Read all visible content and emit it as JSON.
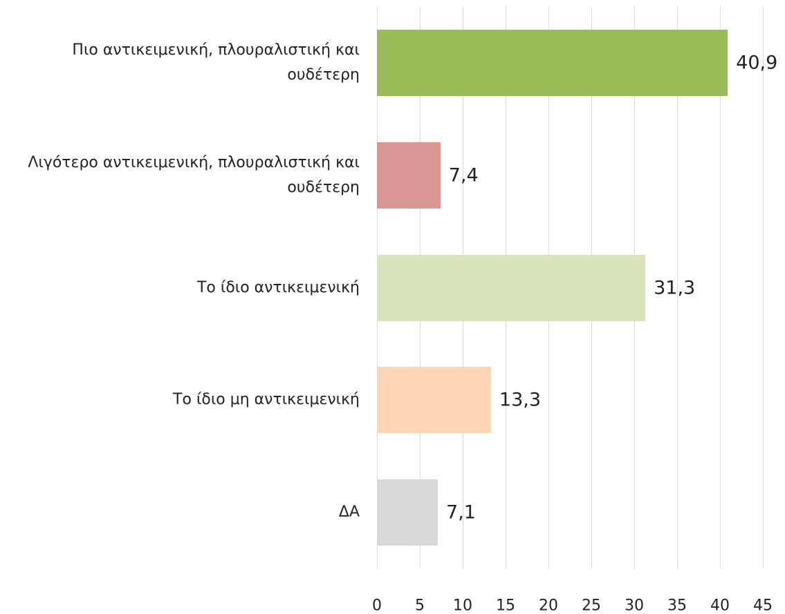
{
  "chart_data": {
    "type": "barh",
    "categories": [
      "Πιο αντικειμενική, πλουραλιστική και ουδέτερη",
      "Λιγότερο αντικειμενική, πλουραλιστική και ουδέτερη",
      "Το ίδιο αντικειμενική",
      "Το ίδιο μη αντικειμενική",
      "ΔΑ"
    ],
    "values": [
      40.9,
      7.4,
      31.3,
      13.3,
      7.1
    ],
    "value_labels": [
      "40,9",
      "7,4",
      "31,3",
      "13,3",
      "7,1"
    ],
    "colors": [
      "#9bbb59",
      "#d99694",
      "#d7e4bd",
      "#fbd5b5",
      "#d9d9d9"
    ],
    "xlim": [
      0,
      45
    ],
    "xticks": [
      0,
      5,
      10,
      15,
      20,
      25,
      30,
      35,
      40,
      45
    ],
    "grid": true
  }
}
